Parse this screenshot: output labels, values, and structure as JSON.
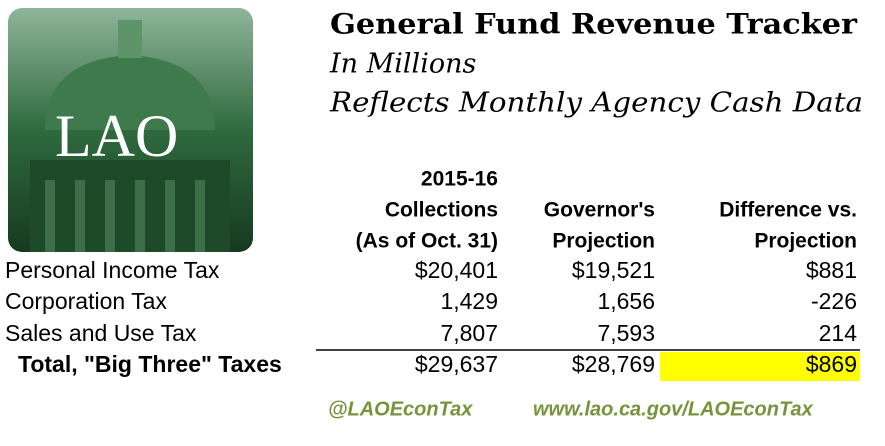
{
  "logo": {
    "text": "LAO"
  },
  "header": {
    "title": "General Fund Revenue Tracker",
    "subtitle": "In Millions",
    "note": "Reflects Monthly Agency Cash Data"
  },
  "table": {
    "columns": [
      [
        "2015-16",
        "Collections",
        "(As of Oct. 31)"
      ],
      [
        "Governor's",
        "Projection"
      ],
      [
        "Difference vs.",
        "Projection"
      ]
    ],
    "rows": [
      [
        "Personal Income Tax",
        "$20,401",
        "$19,521",
        "$881"
      ],
      [
        "Corporation Tax",
        "1,429",
        "1,656",
        "-226"
      ],
      [
        "Sales and Use Tax",
        "7,807",
        "7,593",
        "214"
      ]
    ],
    "total": [
      "Total, \"Big Three\" Taxes",
      "$29,637",
      "$28,769",
      "$869"
    ]
  },
  "footer": {
    "twitter": "@LAOEconTax",
    "url": "www.lao.ca.gov/LAOEconTax"
  }
}
